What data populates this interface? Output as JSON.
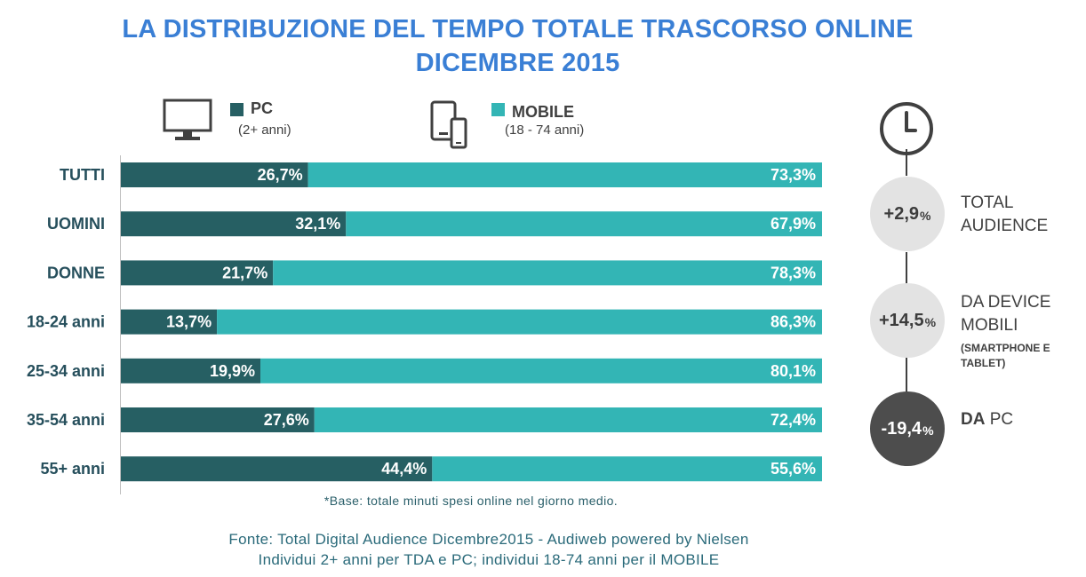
{
  "title_line1": "LA DISTRIBUZIONE  DEL TEMPO TOTALE TRASCORSO ONLINE",
  "title_line2": "DICEMBRE 2015",
  "legend": {
    "pc_label": "PC",
    "pc_sub": "(2+ anni)",
    "mobile_label": "MOBILE",
    "mobile_sub": "(18 - 74 anni)"
  },
  "colors": {
    "pc": "#265f63",
    "mobile": "#33b5b5",
    "title": "#3a7fd5"
  },
  "chart_data": {
    "type": "bar",
    "orientation": "horizontal-stacked-100",
    "categories": [
      "TUTTI",
      "UOMINI",
      "DONNE",
      "18-24 anni",
      "25-34 anni",
      "35-54 anni",
      "55+ anni"
    ],
    "series": [
      {
        "name": "PC",
        "values": [
          26.7,
          32.1,
          21.7,
          13.7,
          19.9,
          27.6,
          44.4
        ],
        "labels": [
          "26,7%",
          "32,1%",
          "21,7%",
          "13,7%",
          "19,9%",
          "27,6%",
          "44,4%"
        ]
      },
      {
        "name": "MOBILE",
        "values": [
          73.3,
          67.9,
          78.3,
          86.3,
          80.1,
          72.4,
          55.6
        ],
        "labels": [
          "73,3%",
          "67,9%",
          "78,3%",
          "86,3%",
          "80,1%",
          "72,4%",
          "55,6%"
        ]
      }
    ],
    "xlim": [
      0,
      100
    ]
  },
  "footnote": "*Base:  totale  minuti  spesi  online  nel  giorno  medio.",
  "source_line1": "Fonte: Total Digital Audience  Dicembre2015  - Audiweb  powered by Nielsen",
  "source_line2": "Individui  2+ anni  per TDA e PC; individui  18-74 anni  per il MOBILE",
  "side_panel": {
    "icon": "clock-icon",
    "items": [
      {
        "value": "+2,9",
        "pct": "%",
        "line1": "TOTAL",
        "line2": "AUDIENCE"
      },
      {
        "value": "+14,5",
        "pct": "%",
        "line1": "DA DEVICE",
        "line2": "MOBILI",
        "small1": "(SMARTPHONE E",
        "small2": "TABLET)"
      },
      {
        "value": "-19,4",
        "pct": "%",
        "bold": "DA",
        "rest": " PC"
      }
    ]
  }
}
